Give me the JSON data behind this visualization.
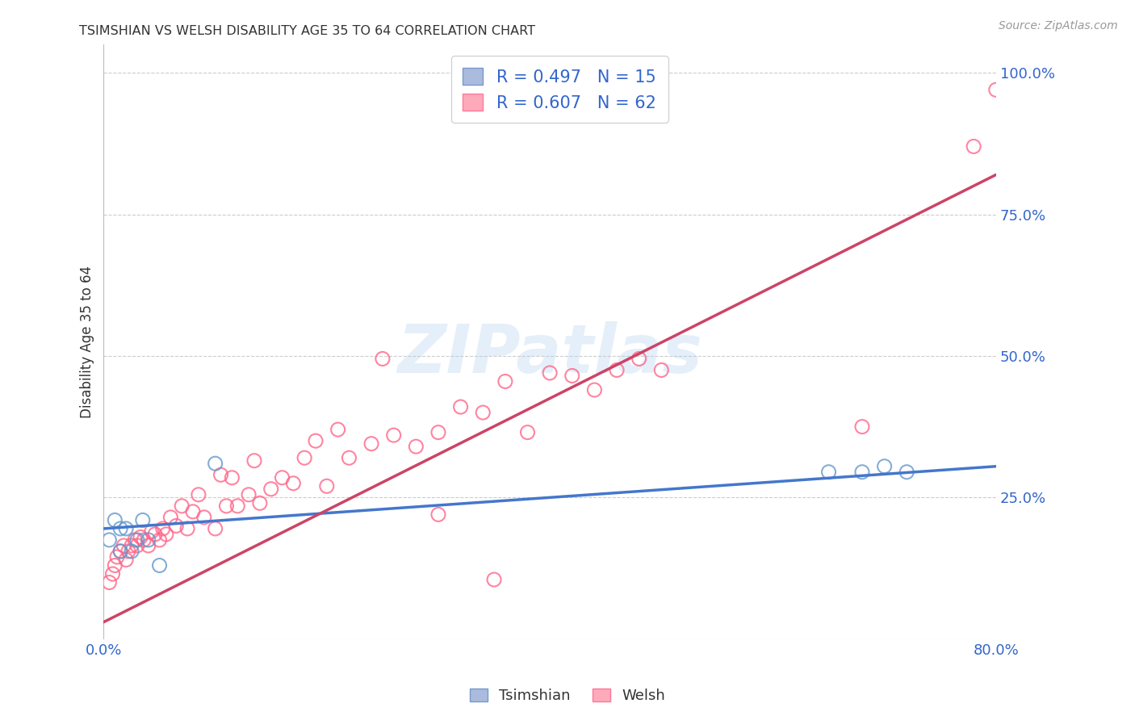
{
  "title": "TSIMSHIAN VS WELSH DISABILITY AGE 35 TO 64 CORRELATION CHART",
  "source": "Source: ZipAtlas.com",
  "ylabel": "Disability Age 35 to 64",
  "x_min": 0.0,
  "x_max": 0.8,
  "y_min": 0.0,
  "y_max": 1.05,
  "x_ticks": [
    0.0,
    0.2,
    0.4,
    0.6,
    0.8
  ],
  "x_tick_labels": [
    "0.0%",
    "",
    "",
    "",
    "80.0%"
  ],
  "y_tick_labels_right": [
    "100.0%",
    "75.0%",
    "50.0%",
    "25.0%"
  ],
  "y_tick_positions_right": [
    1.0,
    0.75,
    0.5,
    0.25
  ],
  "tsimshian_R": 0.497,
  "tsimshian_N": 15,
  "welsh_R": 0.607,
  "welsh_N": 62,
  "tsimshian_color": "#6699CC",
  "welsh_color": "#FF6688",
  "tsimshian_scatter_x": [
    0.005,
    0.01,
    0.015,
    0.02,
    0.025,
    0.03,
    0.035,
    0.04,
    0.05,
    0.1,
    0.65,
    0.68,
    0.7,
    0.72,
    0.015
  ],
  "tsimshian_scatter_y": [
    0.175,
    0.21,
    0.195,
    0.195,
    0.155,
    0.175,
    0.21,
    0.175,
    0.13,
    0.31,
    0.295,
    0.295,
    0.305,
    0.295,
    0.155
  ],
  "welsh_scatter_x": [
    0.005,
    0.008,
    0.01,
    0.012,
    0.015,
    0.018,
    0.02,
    0.022,
    0.025,
    0.028,
    0.03,
    0.033,
    0.036,
    0.04,
    0.043,
    0.046,
    0.05,
    0.053,
    0.056,
    0.06,
    0.065,
    0.07,
    0.075,
    0.08,
    0.085,
    0.09,
    0.1,
    0.105,
    0.11,
    0.115,
    0.12,
    0.13,
    0.135,
    0.14,
    0.15,
    0.16,
    0.17,
    0.18,
    0.19,
    0.2,
    0.21,
    0.22,
    0.24,
    0.26,
    0.28,
    0.3,
    0.32,
    0.34,
    0.36,
    0.38,
    0.4,
    0.42,
    0.44,
    0.46,
    0.5,
    0.3,
    0.68,
    0.35,
    0.25,
    0.48,
    0.78,
    0.8
  ],
  "welsh_scatter_y": [
    0.1,
    0.115,
    0.13,
    0.145,
    0.155,
    0.165,
    0.14,
    0.155,
    0.165,
    0.175,
    0.165,
    0.18,
    0.175,
    0.165,
    0.19,
    0.185,
    0.175,
    0.195,
    0.185,
    0.215,
    0.2,
    0.235,
    0.195,
    0.225,
    0.255,
    0.215,
    0.195,
    0.29,
    0.235,
    0.285,
    0.235,
    0.255,
    0.315,
    0.24,
    0.265,
    0.285,
    0.275,
    0.32,
    0.35,
    0.27,
    0.37,
    0.32,
    0.345,
    0.36,
    0.34,
    0.365,
    0.41,
    0.4,
    0.455,
    0.365,
    0.47,
    0.465,
    0.44,
    0.475,
    0.475,
    0.22,
    0.375,
    0.105,
    0.495,
    0.495,
    0.87,
    0.97
  ],
  "tsimshian_trend_x": [
    0.0,
    0.8
  ],
  "tsimshian_trend_y": [
    0.195,
    0.305
  ],
  "welsh_trend_x": [
    0.0,
    0.8
  ],
  "welsh_trend_y": [
    0.03,
    0.82
  ],
  "background_color": "#FFFFFF",
  "grid_color": "#CCCCCC",
  "watermark_text": "ZIPatlas",
  "tsimshian_line_color": "#4477CC",
  "welsh_line_color": "#CC4466"
}
